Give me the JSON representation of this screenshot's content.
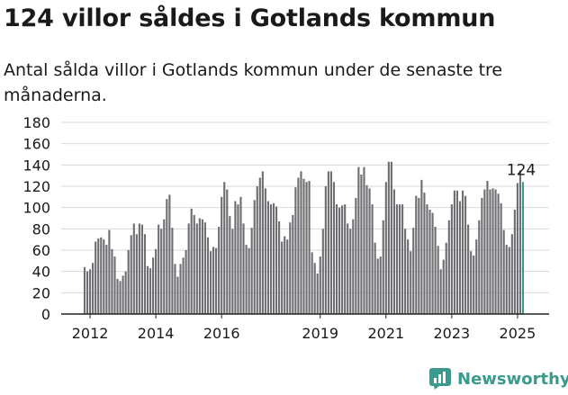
{
  "header": {
    "title": "124 villor såldes i Gotlands kommun",
    "subtitle": "Antal sålda villor i Gotlands kommun under de senaste tre månaderna."
  },
  "brand": {
    "name": "Newsworthy",
    "icon": "newsworthy-logo-icon",
    "color": "#3a9a8e"
  },
  "colors": {
    "bar": "#6e6e73",
    "highlight": "#3a9a8e",
    "grid": "#d9d9d9",
    "axis": "#222222"
  },
  "chart_data": {
    "type": "bar",
    "title": "124 villor såldes i Gotlands kommun",
    "subtitle": "Antal sålda villor i Gotlands kommun under de senaste tre månaderna.",
    "xlabel": "",
    "ylabel": "",
    "ylim": [
      0,
      180
    ],
    "yticks": [
      0,
      20,
      40,
      60,
      80,
      100,
      120,
      140,
      160,
      180
    ],
    "xtick_labels": [
      "2012",
      "2014",
      "2016",
      "2019",
      "2021",
      "2023",
      "2025"
    ],
    "xtick_index": [
      2,
      26,
      50,
      86,
      110,
      134,
      158
    ],
    "grid": true,
    "highlight_label": "124",
    "values": [
      44,
      40,
      42,
      48,
      68,
      71,
      72,
      70,
      65,
      79,
      61,
      54,
      33,
      31,
      36,
      40,
      60,
      74,
      85,
      75,
      85,
      84,
      75,
      45,
      43,
      53,
      61,
      84,
      80,
      89,
      108,
      112,
      81,
      47,
      35,
      47,
      53,
      60,
      85,
      99,
      93,
      85,
      90,
      89,
      86,
      72,
      59,
      63,
      62,
      82,
      110,
      124,
      117,
      92,
      80,
      106,
      103,
      110,
      85,
      65,
      62,
      81,
      107,
      120,
      128,
      134,
      118,
      106,
      103,
      104,
      101,
      87,
      68,
      73,
      70,
      86,
      93,
      119,
      128,
      134,
      127,
      124,
      125,
      58,
      48,
      38,
      54,
      80,
      120,
      134,
      134,
      124,
      103,
      100,
      102,
      103,
      85,
      80,
      89,
      109,
      138,
      131,
      138,
      121,
      118,
      103,
      67,
      52,
      54,
      88,
      124,
      143,
      143,
      117,
      103,
      103,
      103,
      80,
      70,
      59,
      81,
      111,
      109,
      126,
      114,
      103,
      98,
      95,
      82,
      64,
      42,
      51,
      67,
      88,
      103,
      116,
      116,
      106,
      116,
      111,
      84,
      59,
      55,
      70,
      88,
      109,
      117,
      125,
      117,
      118,
      117,
      113,
      104,
      79,
      65,
      63,
      75,
      98,
      123,
      135,
      124
    ]
  }
}
